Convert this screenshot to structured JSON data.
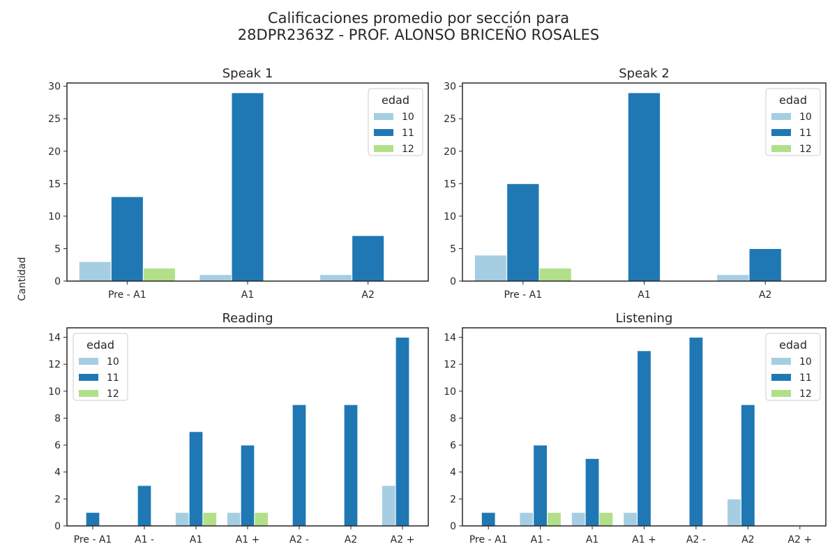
{
  "figure": {
    "title_line1": "Calificaciones promedio por sección para",
    "title_line2": "28DPR2363Z - PROF. ALONSO BRICEÑO ROSALES",
    "shared_ylabel": "Cantidad"
  },
  "chart_data": [
    {
      "type": "bar",
      "title": "Speak 1",
      "categories": [
        "Pre - A1",
        "A1",
        "A2"
      ],
      "ylim": [
        0,
        30.5
      ],
      "yticks": [
        0,
        5,
        10,
        15,
        20,
        25,
        30
      ],
      "legend": {
        "title": "edad",
        "placement": "top-right"
      },
      "series": [
        {
          "name": "10",
          "color": "#a6cee3",
          "values": [
            3,
            1,
            1
          ]
        },
        {
          "name": "11",
          "color": "#1f78b4",
          "values": [
            13,
            29,
            7
          ]
        },
        {
          "name": "12",
          "color": "#b2df8a",
          "values": [
            2,
            0,
            0
          ]
        }
      ]
    },
    {
      "type": "bar",
      "title": "Speak 2",
      "categories": [
        "Pre - A1",
        "A1",
        "A2"
      ],
      "ylim": [
        0,
        30.5
      ],
      "yticks": [
        0,
        5,
        10,
        15,
        20,
        25,
        30
      ],
      "legend": {
        "title": "edad",
        "placement": "top-right"
      },
      "series": [
        {
          "name": "10",
          "color": "#a6cee3",
          "values": [
            4,
            0,
            1
          ]
        },
        {
          "name": "11",
          "color": "#1f78b4",
          "values": [
            15,
            29,
            5
          ]
        },
        {
          "name": "12",
          "color": "#b2df8a",
          "values": [
            2,
            0,
            0
          ]
        }
      ]
    },
    {
      "type": "bar",
      "title": "Reading",
      "categories": [
        "Pre - A1",
        "A1 -",
        "A1",
        "A1 +",
        "A2 -",
        "A2",
        "A2 +"
      ],
      "ylim": [
        0,
        14.7
      ],
      "yticks": [
        0,
        2,
        4,
        6,
        8,
        10,
        12,
        14
      ],
      "legend": {
        "title": "edad",
        "placement": "top-left"
      },
      "series": [
        {
          "name": "10",
          "color": "#a6cee3",
          "values": [
            0,
            0,
            1,
            1,
            0,
            0,
            3
          ]
        },
        {
          "name": "11",
          "color": "#1f78b4",
          "values": [
            1,
            3,
            7,
            6,
            9,
            9,
            14
          ]
        },
        {
          "name": "12",
          "color": "#b2df8a",
          "values": [
            0,
            0,
            1,
            1,
            0,
            0,
            0
          ]
        }
      ]
    },
    {
      "type": "bar",
      "title": "Listening",
      "categories": [
        "Pre - A1",
        "A1 -",
        "A1",
        "A1 +",
        "A2 -",
        "A2",
        "A2 +"
      ],
      "ylim": [
        0,
        14.7
      ],
      "yticks": [
        0,
        2,
        4,
        6,
        8,
        10,
        12,
        14
      ],
      "legend": {
        "title": "edad",
        "placement": "top-right"
      },
      "series": [
        {
          "name": "10",
          "color": "#a6cee3",
          "values": [
            0,
            1,
            1,
            1,
            0,
            2,
            0
          ]
        },
        {
          "name": "11",
          "color": "#1f78b4",
          "values": [
            1,
            6,
            5,
            13,
            14,
            9,
            0
          ]
        },
        {
          "name": "12",
          "color": "#b2df8a",
          "values": [
            0,
            1,
            1,
            0,
            0,
            0,
            0
          ]
        }
      ]
    }
  ]
}
